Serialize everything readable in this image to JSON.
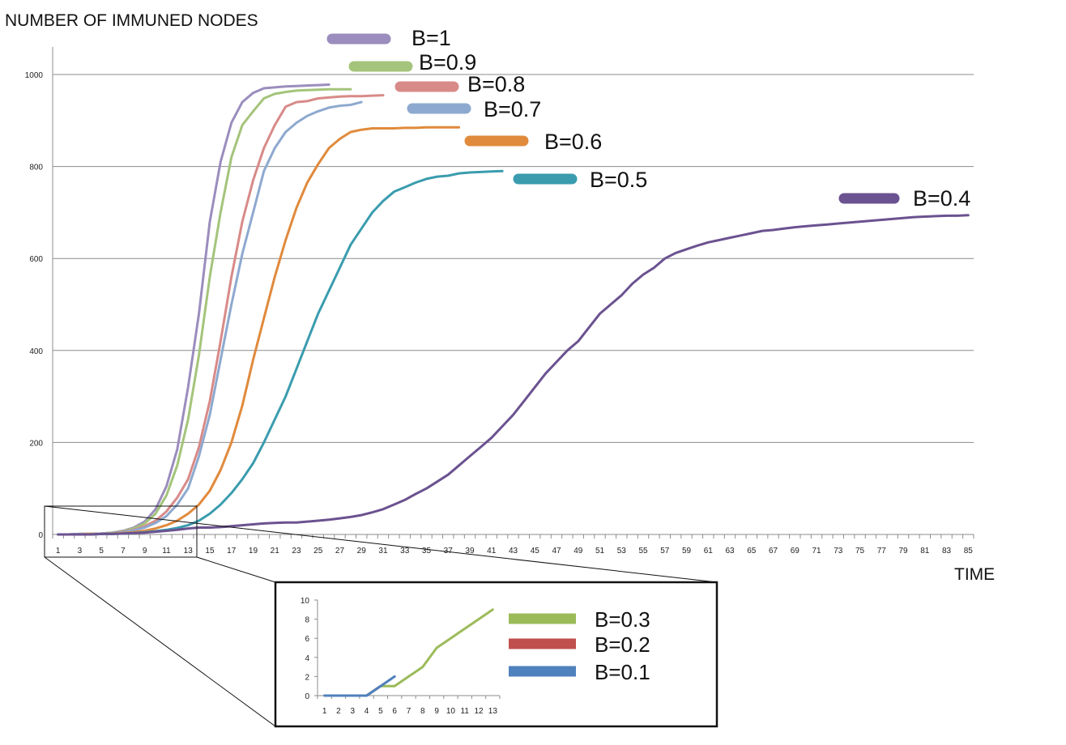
{
  "chart_data": [
    {
      "type": "line",
      "ylabel": "NUMBER OF IMMUNED NODES",
      "xlabel": "TIME",
      "ylim": [
        0,
        1000
      ],
      "yticks": [
        0,
        200,
        400,
        600,
        800,
        1000
      ],
      "x_ticks": [
        "1",
        "3",
        "5",
        "7",
        "9",
        "11",
        "13",
        "15",
        "17",
        "19",
        "21",
        "23",
        "25",
        "27",
        "29",
        "31",
        "33",
        "35",
        "37",
        "39",
        "41",
        "43",
        "45",
        "47",
        "49",
        "51",
        "53",
        "55",
        "57",
        "59",
        "61",
        "63",
        "65",
        "67",
        "69",
        "71",
        "73",
        "75",
        "77",
        "79",
        "81",
        "83",
        "85"
      ],
      "grid": true,
      "legend": "inline",
      "series": [
        {
          "name": "B=1",
          "color": "#9b8dbd",
          "x": [
            1,
            2,
            3,
            4,
            5,
            6,
            7,
            8,
            9,
            10,
            11,
            12,
            13,
            14,
            15,
            16,
            17,
            18,
            19,
            20,
            21,
            22,
            23,
            24,
            25,
            26
          ],
          "values": [
            0,
            0,
            1,
            1,
            2,
            4,
            8,
            15,
            28,
            55,
            105,
            185,
            320,
            480,
            680,
            810,
            895,
            940,
            960,
            970,
            972,
            974,
            975,
            976,
            977,
            978
          ]
        },
        {
          "name": "B=0.9",
          "color": "#a4c47b",
          "x": [
            1,
            2,
            3,
            4,
            5,
            6,
            7,
            8,
            9,
            10,
            11,
            12,
            13,
            14,
            15,
            16,
            17,
            18,
            19,
            20,
            21,
            22,
            23,
            24,
            25,
            26,
            27,
            28
          ],
          "values": [
            0,
            0,
            1,
            1,
            2,
            4,
            7,
            13,
            24,
            45,
            85,
            150,
            250,
            390,
            560,
            700,
            820,
            890,
            920,
            948,
            958,
            962,
            965,
            966,
            967,
            968,
            968,
            968
          ]
        },
        {
          "name": "B=0.8",
          "color": "#d88a88",
          "x": [
            1,
            2,
            3,
            4,
            5,
            6,
            7,
            8,
            9,
            10,
            11,
            12,
            13,
            14,
            15,
            16,
            17,
            18,
            19,
            20,
            21,
            22,
            23,
            24,
            25,
            26,
            27,
            28,
            29,
            30,
            31
          ],
          "values": [
            0,
            0,
            1,
            1,
            2,
            3,
            6,
            10,
            18,
            30,
            50,
            80,
            120,
            190,
            290,
            420,
            560,
            680,
            770,
            840,
            890,
            930,
            940,
            942,
            948,
            950,
            952,
            953,
            953,
            954,
            955
          ]
        },
        {
          "name": "B=0.7",
          "color": "#8ea9cf",
          "x": [
            1,
            2,
            3,
            4,
            5,
            6,
            7,
            8,
            9,
            10,
            11,
            12,
            13,
            14,
            15,
            16,
            17,
            18,
            19,
            20,
            21,
            22,
            23,
            24,
            25,
            26,
            27,
            28,
            29
          ],
          "values": [
            0,
            0,
            1,
            1,
            2,
            3,
            5,
            9,
            15,
            25,
            40,
            65,
            100,
            170,
            260,
            380,
            500,
            610,
            700,
            790,
            840,
            875,
            895,
            910,
            920,
            928,
            932,
            934,
            940
          ]
        },
        {
          "name": "B=0.6",
          "color": "#e08a3c",
          "x": [
            1,
            2,
            3,
            4,
            5,
            6,
            7,
            8,
            9,
            10,
            11,
            12,
            13,
            14,
            15,
            16,
            17,
            18,
            19,
            20,
            21,
            22,
            23,
            24,
            25,
            26,
            27,
            28,
            29,
            30,
            31,
            32,
            33,
            34,
            35,
            36,
            37,
            38
          ],
          "values": [
            0,
            0,
            0,
            1,
            1,
            2,
            3,
            5,
            8,
            13,
            20,
            30,
            45,
            65,
            95,
            140,
            200,
            280,
            380,
            470,
            560,
            640,
            710,
            765,
            805,
            840,
            860,
            875,
            880,
            883,
            883,
            883,
            884,
            884,
            885,
            885,
            885,
            885
          ]
        },
        {
          "name": "B=0.5",
          "color": "#3a9cae",
          "x": [
            1,
            2,
            3,
            4,
            5,
            6,
            7,
            8,
            9,
            10,
            11,
            12,
            13,
            14,
            15,
            16,
            17,
            18,
            19,
            20,
            21,
            22,
            23,
            24,
            25,
            26,
            27,
            28,
            29,
            30,
            31,
            32,
            33,
            34,
            35,
            36,
            37,
            38,
            39,
            40,
            41,
            42
          ],
          "values": [
            0,
            0,
            0,
            0,
            1,
            1,
            2,
            3,
            5,
            7,
            10,
            14,
            20,
            30,
            45,
            65,
            90,
            120,
            155,
            200,
            250,
            300,
            360,
            420,
            480,
            530,
            580,
            630,
            665,
            700,
            725,
            745,
            755,
            765,
            773,
            778,
            780,
            785,
            787,
            788,
            789,
            790
          ]
        },
        {
          "name": "B=0.4",
          "color": "#6b5290",
          "x": [
            1,
            2,
            3,
            4,
            5,
            6,
            7,
            8,
            9,
            10,
            11,
            12,
            13,
            14,
            15,
            16,
            17,
            18,
            19,
            20,
            21,
            22,
            23,
            24,
            25,
            26,
            27,
            28,
            29,
            30,
            31,
            32,
            33,
            34,
            35,
            36,
            37,
            38,
            39,
            40,
            41,
            42,
            43,
            44,
            45,
            46,
            47,
            48,
            49,
            50,
            51,
            52,
            53,
            54,
            55,
            56,
            57,
            58,
            59,
            60,
            61,
            62,
            63,
            64,
            65,
            66,
            67,
            68,
            69,
            70,
            71,
            72,
            73,
            74,
            75,
            76,
            77,
            78,
            79,
            80,
            81,
            82,
            83,
            84,
            85
          ],
          "values": [
            0,
            0,
            0,
            0,
            1,
            1,
            2,
            3,
            4,
            6,
            8,
            10,
            13,
            15,
            15,
            16,
            18,
            20,
            22,
            24,
            25,
            26,
            26,
            28,
            30,
            32,
            35,
            38,
            42,
            48,
            55,
            65,
            75,
            88,
            100,
            115,
            130,
            150,
            170,
            190,
            210,
            235,
            260,
            290,
            320,
            350,
            375,
            400,
            420,
            450,
            480,
            500,
            520,
            545,
            565,
            580,
            600,
            612,
            620,
            628,
            635,
            640,
            645,
            650,
            655,
            660,
            662,
            665,
            668,
            670,
            672,
            674,
            676,
            678,
            680,
            682,
            684,
            686,
            688,
            690,
            691,
            692,
            693,
            693,
            694
          ]
        }
      ]
    },
    {
      "type": "line",
      "ylim": [
        0,
        10
      ],
      "yticks": [
        0,
        2,
        4,
        6,
        8,
        10
      ],
      "x_ticks": [
        "1",
        "2",
        "3",
        "4",
        "5",
        "6",
        "7",
        "8",
        "9",
        "10",
        "11",
        "12",
        "13"
      ],
      "grid": false,
      "legend": "right",
      "series": [
        {
          "name": "B=0.3",
          "color": "#9bbb59",
          "x": [
            1,
            2,
            3,
            4,
            5,
            6,
            7,
            8,
            9,
            10,
            11,
            12,
            13
          ],
          "values": [
            0,
            0,
            0,
            0,
            1,
            1,
            2,
            3,
            5,
            6,
            7,
            8,
            9
          ]
        },
        {
          "name": "B=0.2",
          "color": "#c0504d",
          "x": [
            1,
            2,
            3,
            4,
            5
          ],
          "values": [
            0,
            0,
            0,
            0,
            1
          ]
        },
        {
          "name": "B=0.1",
          "color": "#4f81bd",
          "x": [
            1,
            2,
            3,
            4,
            5,
            6
          ],
          "values": [
            0,
            0,
            0,
            0,
            1,
            2
          ]
        }
      ]
    }
  ]
}
